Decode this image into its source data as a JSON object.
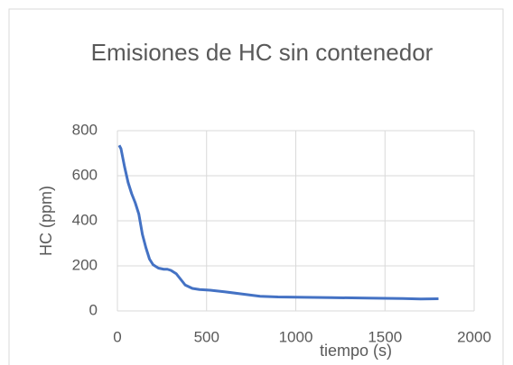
{
  "chart_data": {
    "type": "line",
    "title": "Emisiones de HC sin contenedor",
    "x_label": "tiempo (s)",
    "y_label": "HC (ppm)",
    "x": [
      10,
      20,
      40,
      60,
      80,
      100,
      120,
      140,
      160,
      180,
      200,
      230,
      260,
      280,
      300,
      330,
      360,
      380,
      420,
      460,
      500,
      520,
      600,
      700,
      800,
      900,
      1000,
      1200,
      1400,
      1600,
      1700,
      1800
    ],
    "series": [
      {
        "name": "HC",
        "color": "#4472c4",
        "values": [
          735,
          720,
          640,
          570,
          520,
          480,
          430,
          340,
          280,
          230,
          205,
          190,
          185,
          185,
          180,
          165,
          135,
          115,
          100,
          95,
          93,
          92,
          85,
          75,
          65,
          62,
          61,
          59,
          57,
          55,
          53,
          54
        ]
      }
    ],
    "xlim": [
      0,
      2000
    ],
    "xticks": [
      0,
      500,
      1000,
      1500,
      2000
    ],
    "ylim": [
      0,
      800
    ],
    "yticks": [
      0,
      200,
      400,
      600,
      800
    ],
    "grid": true
  }
}
